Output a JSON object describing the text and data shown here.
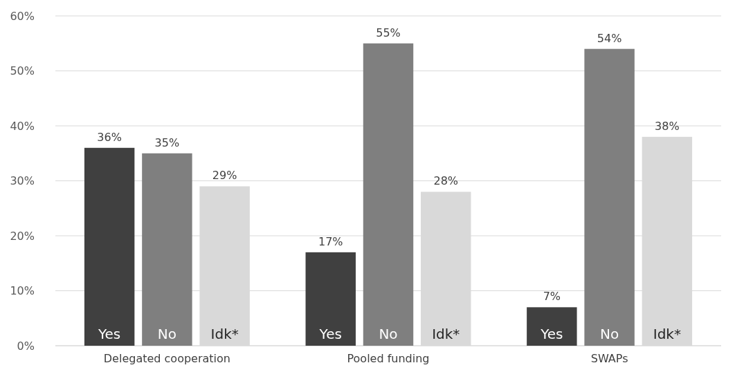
{
  "chart_data": {
    "type": "bar",
    "categories": [
      "Delegated cooperation",
      "Pooled funding",
      "SWAPs"
    ],
    "series": [
      {
        "name": "Yes",
        "color": "#404040",
        "values": [
          36,
          17,
          7
        ],
        "value_labels": [
          "36%",
          "17%",
          "7%"
        ]
      },
      {
        "name": "No",
        "color": "#7f7f7f",
        "values": [
          35,
          55,
          54
        ],
        "value_labels": [
          "35%",
          "55%",
          "54%"
        ]
      },
      {
        "name": "Idk*",
        "color": "#d9d9d9",
        "values": [
          29,
          28,
          38
        ],
        "value_labels": [
          "29%",
          "28%",
          "38%"
        ]
      }
    ],
    "ylim": [
      0,
      60
    ],
    "yticks": [
      {
        "value": 0,
        "label": "0%"
      },
      {
        "value": 10,
        "label": "10%"
      },
      {
        "value": 20,
        "label": "20%"
      },
      {
        "value": 30,
        "label": "30%"
      },
      {
        "value": 40,
        "label": "40%"
      },
      {
        "value": 50,
        "label": "50%"
      },
      {
        "value": 60,
        "label": "60%"
      }
    ],
    "grid": "y"
  }
}
